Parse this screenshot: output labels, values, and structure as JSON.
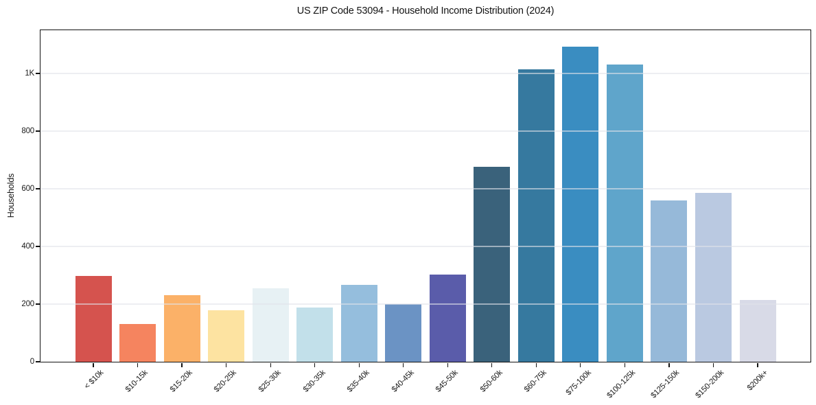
{
  "chart_data": {
    "type": "bar",
    "title": "US ZIP Code 53094 - Household Income Distribution (2024)",
    "xlabel": "",
    "ylabel": "Households",
    "categories": [
      "< $10k",
      "$10-15k",
      "$15-20k",
      "$20-25k",
      "$25-30k",
      "$30-35k",
      "$35-40k",
      "$40-45k",
      "$45-50k",
      "$50-60k",
      "$60-75k",
      "$75-100k",
      "$100-125k",
      "$125-150k",
      "$150-200k",
      "$200k+"
    ],
    "values": [
      298,
      131,
      231,
      179,
      255,
      189,
      267,
      200,
      302,
      676,
      1015,
      1093,
      1030,
      560,
      586,
      215
    ],
    "bar_colors": [
      "#d5534e",
      "#f5845f",
      "#fbb168",
      "#fde3a1",
      "#e7f1f4",
      "#c2e0ea",
      "#95bedd",
      "#6b93c4",
      "#5a5caa",
      "#3a627b",
      "#36799f",
      "#3a8dc1",
      "#5fa5cb",
      "#96b9d9",
      "#bac9e1",
      "#d8dae7"
    ],
    "ylim": [
      0,
      1150
    ],
    "yticks": [
      {
        "value": 0,
        "label": "0"
      },
      {
        "value": 200,
        "label": "200"
      },
      {
        "value": 400,
        "label": "400"
      },
      {
        "value": 600,
        "label": "600"
      },
      {
        "value": 800,
        "label": "800"
      },
      {
        "value": 1000,
        "label": "1K"
      }
    ],
    "grid": "horizontal",
    "legend": "none",
    "colors": {
      "background": "#ffffff",
      "axis": "#111111",
      "gridline": "rgba(225,227,234,0.6)",
      "text": "#1a1a1a"
    }
  }
}
